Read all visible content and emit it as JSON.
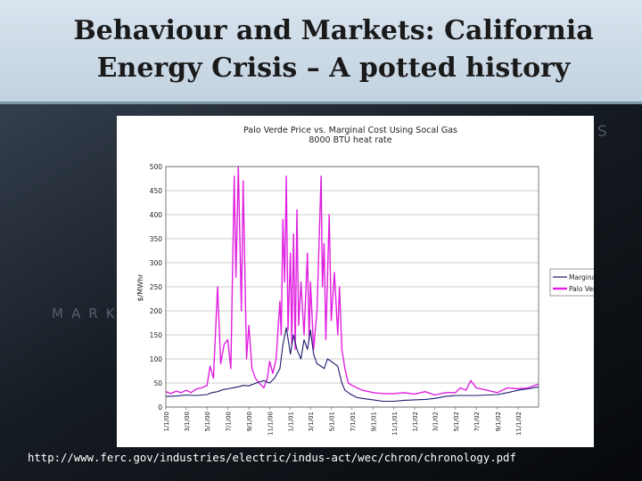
{
  "slide": {
    "title_line1": "Behaviour and Markets: California",
    "title_line2": "Energy Crisis – A potted history",
    "footer_url": "http://www.ferc.gov/industries/electric/indus-act/wec/chron/chronology.pdf",
    "background_word": "MARKE",
    "background_letter": "S"
  },
  "colors": {
    "marginal_series": "#1a1a6e",
    "palo_verde_series": "#e020e0",
    "grid": "#9a9a9a",
    "header_background": "#cfdce8"
  },
  "chart_data": {
    "type": "line",
    "title": "Palo Verde Price vs. Marginal Cost Using Socal Gas",
    "subtitle": "8000 BTU heat rate",
    "ylabel": "$/MWhr",
    "xlabel": "",
    "ylim": [
      0,
      500
    ],
    "yticks": [
      "0",
      "50",
      "100",
      "150",
      "200",
      "250",
      "300",
      "350",
      "400",
      "450",
      "500"
    ],
    "xticks": [
      "1/1/00",
      "3/1/00",
      "5/1/00",
      "7/1/00",
      "9/1/00",
      "11/1/00",
      "1/1/01",
      "3/1/01",
      "5/1/01",
      "7/1/01",
      "9/1/01",
      "11/1/01",
      "1/1/02",
      "3/1/02",
      "5/1/02",
      "7/1/02",
      "9/1/02",
      "11/1/02"
    ],
    "grid": true,
    "legend_position": "right",
    "series": [
      {
        "name": "Marginal",
        "color": "#1a1a6e",
        "points": [
          [
            "1/1/00",
            22
          ],
          [
            "2/1/00",
            23
          ],
          [
            "3/1/00",
            25
          ],
          [
            "4/1/00",
            24
          ],
          [
            "5/1/00",
            26
          ],
          [
            "5/15/00",
            30
          ],
          [
            "6/1/00",
            32
          ],
          [
            "6/15/00",
            36
          ],
          [
            "7/1/00",
            38
          ],
          [
            "7/15/00",
            40
          ],
          [
            "8/1/00",
            42
          ],
          [
            "8/15/00",
            45
          ],
          [
            "9/1/00",
            44
          ],
          [
            "9/15/00",
            48
          ],
          [
            "10/1/00",
            52
          ],
          [
            "10/15/00",
            55
          ],
          [
            "11/1/00",
            50
          ],
          [
            "11/15/00",
            60
          ],
          [
            "12/1/00",
            80
          ],
          [
            "12/10/00",
            130
          ],
          [
            "12/20/00",
            165
          ],
          [
            "1/1/01",
            110
          ],
          [
            "1/10/01",
            150
          ],
          [
            "1/20/01",
            120
          ],
          [
            "2/1/01",
            100
          ],
          [
            "2/10/01",
            140
          ],
          [
            "2/20/01",
            120
          ],
          [
            "3/1/01",
            160
          ],
          [
            "3/10/01",
            110
          ],
          [
            "3/20/01",
            90
          ],
          [
            "4/1/01",
            85
          ],
          [
            "4/10/01",
            80
          ],
          [
            "4/20/01",
            100
          ],
          [
            "5/1/01",
            95
          ],
          [
            "5/10/01",
            90
          ],
          [
            "5/20/01",
            85
          ],
          [
            "6/1/01",
            50
          ],
          [
            "6/10/01",
            35
          ],
          [
            "6/20/01",
            30
          ],
          [
            "7/1/01",
            25
          ],
          [
            "7/15/01",
            20
          ],
          [
            "8/1/01",
            18
          ],
          [
            "9/1/01",
            15
          ],
          [
            "10/1/01",
            12
          ],
          [
            "11/1/01",
            12
          ],
          [
            "12/1/01",
            14
          ],
          [
            "1/1/02",
            15
          ],
          [
            "2/1/02",
            16
          ],
          [
            "3/1/02",
            18
          ],
          [
            "4/1/02",
            22
          ],
          [
            "5/1/02",
            24
          ],
          [
            "6/1/02",
            24
          ],
          [
            "7/1/02",
            24
          ],
          [
            "8/1/02",
            25
          ],
          [
            "9/1/02",
            26
          ],
          [
            "10/1/02",
            30
          ],
          [
            "11/1/02",
            35
          ],
          [
            "12/1/02",
            38
          ],
          [
            "12/31/02",
            42
          ]
        ]
      },
      {
        "name": "Palo Verde",
        "color": "#e020e0",
        "points": [
          [
            "1/1/00",
            32
          ],
          [
            "1/15/00",
            28
          ],
          [
            "2/1/00",
            33
          ],
          [
            "2/15/00",
            30
          ],
          [
            "3/1/00",
            35
          ],
          [
            "3/15/00",
            30
          ],
          [
            "4/1/00",
            38
          ],
          [
            "4/15/00",
            40
          ],
          [
            "5/1/00",
            45
          ],
          [
            "5/10/00",
            85
          ],
          [
            "5/20/00",
            60
          ],
          [
            "6/1/00",
            250
          ],
          [
            "6/10/00",
            90
          ],
          [
            "6/20/00",
            130
          ],
          [
            "7/1/00",
            140
          ],
          [
            "7/10/00",
            80
          ],
          [
            "7/20/00",
            480
          ],
          [
            "7/25/00",
            270
          ],
          [
            "8/1/00",
            500
          ],
          [
            "8/10/00",
            200
          ],
          [
            "8/15/00",
            470
          ],
          [
            "8/25/00",
            100
          ],
          [
            "9/1/00",
            170
          ],
          [
            "9/10/00",
            80
          ],
          [
            "9/20/00",
            60
          ],
          [
            "10/1/00",
            50
          ],
          [
            "10/15/00",
            40
          ],
          [
            "10/25/00",
            60
          ],
          [
            "11/1/00",
            95
          ],
          [
            "11/10/00",
            70
          ],
          [
            "11/20/00",
            100
          ],
          [
            "12/1/00",
            220
          ],
          [
            "12/5/00",
            150
          ],
          [
            "12/10/00",
            390
          ],
          [
            "12/15/00",
            260
          ],
          [
            "12/20/00",
            480
          ],
          [
            "12/25/00",
            160
          ],
          [
            "1/1/01",
            320
          ],
          [
            "1/5/01",
            130
          ],
          [
            "1/10/01",
            360
          ],
          [
            "1/15/01",
            120
          ],
          [
            "1/20/01",
            410
          ],
          [
            "1/25/01",
            170
          ],
          [
            "2/1/01",
            260
          ],
          [
            "2/10/01",
            150
          ],
          [
            "2/20/01",
            320
          ],
          [
            "2/25/01",
            140
          ],
          [
            "3/1/01",
            260
          ],
          [
            "3/10/01",
            120
          ],
          [
            "3/20/01",
            200
          ],
          [
            "4/1/01",
            480
          ],
          [
            "4/5/01",
            250
          ],
          [
            "4/10/01",
            340
          ],
          [
            "4/15/01",
            140
          ],
          [
            "4/25/01",
            400
          ],
          [
            "5/1/01",
            180
          ],
          [
            "5/10/01",
            280
          ],
          [
            "5/20/01",
            150
          ],
          [
            "5/25/01",
            250
          ],
          [
            "6/1/01",
            120
          ],
          [
            "6/10/01",
            80
          ],
          [
            "6/20/01",
            50
          ],
          [
            "7/1/01",
            45
          ],
          [
            "7/15/01",
            40
          ],
          [
            "8/1/01",
            35
          ],
          [
            "9/1/01",
            30
          ],
          [
            "10/1/01",
            28
          ],
          [
            "11/1/01",
            28
          ],
          [
            "12/1/01",
            30
          ],
          [
            "1/1/02",
            27
          ],
          [
            "2/1/02",
            32
          ],
          [
            "3/1/02",
            25
          ],
          [
            "4/1/02",
            30
          ],
          [
            "5/1/02",
            30
          ],
          [
            "5/15/02",
            40
          ],
          [
            "6/1/02",
            35
          ],
          [
            "6/15/02",
            55
          ],
          [
            "7/1/02",
            40
          ],
          [
            "8/1/02",
            35
          ],
          [
            "9/1/02",
            30
          ],
          [
            "10/1/02",
            40
          ],
          [
            "11/1/02",
            38
          ],
          [
            "12/1/02",
            40
          ],
          [
            "12/31/02",
            48
          ]
        ]
      }
    ]
  }
}
